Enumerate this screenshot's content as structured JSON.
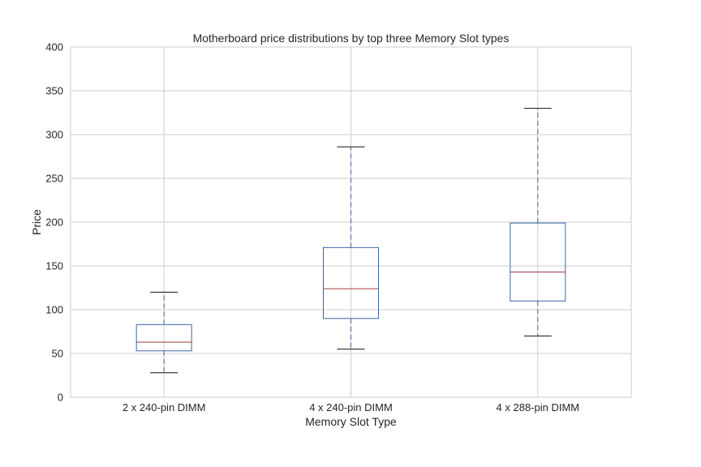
{
  "chart_data": {
    "type": "box",
    "title": "Motherboard price distributions by top three Memory Slot types",
    "xlabel": "Memory Slot Type",
    "ylabel": "Price",
    "ylim": [
      0,
      400
    ],
    "yticks": [
      0,
      50,
      100,
      150,
      200,
      250,
      300,
      350,
      400
    ],
    "grid": true,
    "categories": [
      "2 x 240-pin DIMM",
      "4 x 240-pin DIMM",
      "4 x 288-pin DIMM"
    ],
    "boxes": [
      {
        "category": "2 x 240-pin DIMM",
        "whisker_low": 28,
        "q1": 53,
        "median": 63,
        "q3": 83,
        "whisker_high": 120
      },
      {
        "category": "4 x 240-pin DIMM",
        "whisker_low": 55,
        "q1": 90,
        "median": 124,
        "q3": 171,
        "whisker_high": 286
      },
      {
        "category": "4 x 288-pin DIMM",
        "whisker_low": 70,
        "q1": 110,
        "median": 143,
        "q3": 199,
        "whisker_high": 330
      }
    ],
    "colors": {
      "box": "#3b64a8",
      "median": "#a23b3b",
      "whisker": "#3b64a8",
      "cap": "#111111",
      "grid": "#cccccc",
      "frame": "#cccccc"
    }
  }
}
